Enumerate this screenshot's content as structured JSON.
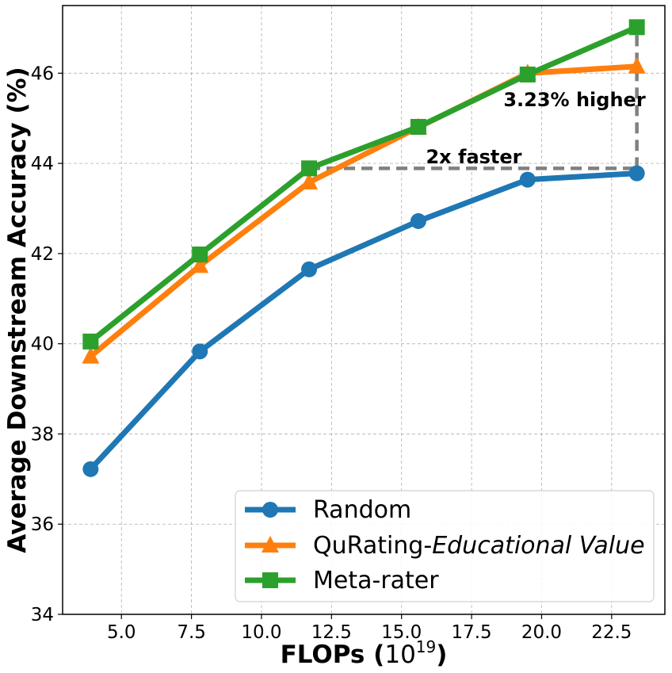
{
  "chart_data": {
    "type": "line",
    "title": "",
    "xlabel": "FLOPs (",
    "xlabel_base": "10",
    "xlabel_exp": "19",
    "xlabel_close": ")",
    "ylabel": "Average Downstream Accuracy (%)",
    "xlim": [
      2.9,
      24.4
    ],
    "ylim": [
      34,
      47.5
    ],
    "xticks": [
      5.0,
      7.5,
      10.0,
      12.5,
      15.0,
      17.5,
      20.0,
      22.5
    ],
    "xtick_labels": [
      "5.0",
      "7.5",
      "10.0",
      "12.5",
      "15.0",
      "17.5",
      "20.0",
      "22.5"
    ],
    "yticks": [
      34,
      36,
      38,
      40,
      42,
      44,
      46
    ],
    "ytick_labels": [
      "34",
      "36",
      "38",
      "40",
      "42",
      "44",
      "46"
    ],
    "grid": true,
    "x": [
      3.9,
      7.8,
      11.7,
      15.6,
      19.5,
      23.4
    ],
    "series": [
      {
        "name": "Random",
        "color": "#1f77b4",
        "marker": "circle",
        "values": [
          37.22,
          39.83,
          41.65,
          42.72,
          43.64,
          43.78
        ]
      },
      {
        "name": "QuRating-Educational Value",
        "name_prefix": "QuRating-",
        "name_italic": "Educational Value",
        "color": "#ff7f0e",
        "marker": "triangle",
        "values": [
          39.72,
          41.73,
          43.58,
          44.8,
          46.0,
          46.15
        ]
      },
      {
        "name": "Meta-rater",
        "color": "#2ca02c",
        "marker": "square",
        "values": [
          40.05,
          41.98,
          43.89,
          44.81,
          45.97,
          47.02
        ]
      }
    ],
    "annotations": [
      {
        "text": "2x faster"
      },
      {
        "text": "3.23% higher"
      }
    ],
    "reference_lines": {
      "horizontal": {
        "x_from": 11.7,
        "x_to": 23.4,
        "y": 43.89,
        "color": "#808080"
      },
      "vertical": {
        "x": 23.4,
        "y_from": 43.89,
        "y_to": 47.02,
        "color": "#808080"
      }
    },
    "legend_position": "bottom-right"
  }
}
